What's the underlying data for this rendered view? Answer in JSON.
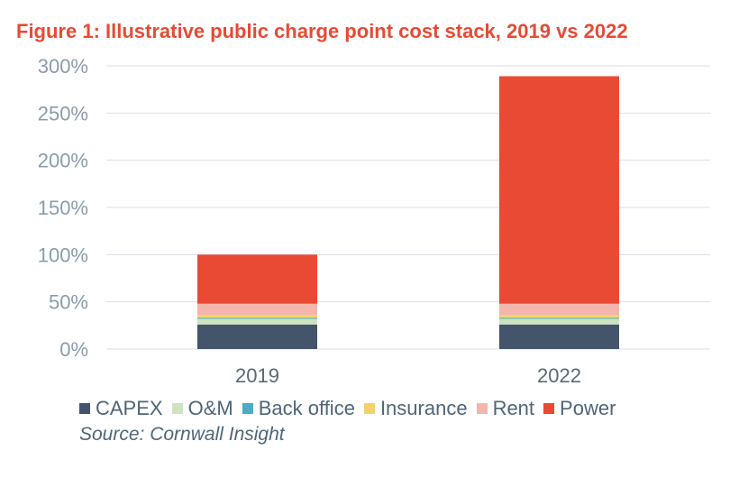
{
  "title": "Figure 1: Illustrative public charge point cost stack, 2019 vs 2022",
  "source": "Source: Cornwall Insight",
  "colors": {
    "title": "#E84A33",
    "axis_text": "#8A9BAE",
    "category_text": "#5A6878",
    "legend_text": "#4F6578",
    "grid": "#D9DFE5"
  },
  "chart_data": {
    "type": "bar",
    "stacked": true,
    "title": "Figure 1: Illustrative public charge point cost stack, 2019 vs 2022",
    "xlabel": "",
    "ylabel": "",
    "ylim": [
      0,
      300
    ],
    "yticks": [
      0,
      50,
      100,
      150,
      200,
      250,
      300
    ],
    "ytick_labels": [
      "0%",
      "50%",
      "100%",
      "150%",
      "200%",
      "250%",
      "300%"
    ],
    "categories": [
      "2019",
      "2022"
    ],
    "grid": true,
    "legend_position": "bottom",
    "series": [
      {
        "name": "CAPEX",
        "color": "#44546A",
        "values": [
          26,
          26
        ]
      },
      {
        "name": "O&M",
        "color": "#CFE3C0",
        "values": [
          6,
          6
        ]
      },
      {
        "name": "Back office",
        "color": "#4BACC6",
        "values": [
          1,
          1
        ]
      },
      {
        "name": "Insurance",
        "color": "#F2D36B",
        "values": [
          3,
          3
        ]
      },
      {
        "name": "Rent",
        "color": "#F4B6AC",
        "values": [
          12,
          12
        ]
      },
      {
        "name": "Power",
        "color": "#E84A33",
        "values": [
          52,
          241
        ]
      }
    ]
  }
}
